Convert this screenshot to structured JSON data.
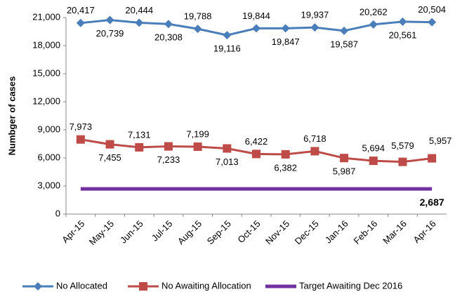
{
  "chart_data": {
    "type": "line",
    "y_label": "Numbger of cases",
    "categories": [
      "Apr-15",
      "May-15",
      "Jun-15",
      "Jul-15",
      "Aug-15",
      "Sep-15",
      "Oct-15",
      "Nov-15",
      "Dec-15",
      "Jan-16",
      "Feb-16",
      "Mar-16",
      "Apr-16"
    ],
    "series": [
      {
        "name": "No Allocated",
        "color": "#4a7ebb",
        "marker": "diamond",
        "values": [
          20417,
          20739,
          20444,
          20308,
          19788,
          19116,
          19844,
          19847,
          19937,
          19587,
          20262,
          20561,
          20504
        ],
        "value_labels": [
          "20,417",
          "20,739",
          "20,444",
          "20,308",
          "19,788",
          "19,116",
          "19,844",
          "19,847",
          "19,937",
          "19,587",
          "20,262",
          "20,561",
          "20,504"
        ]
      },
      {
        "name": "No Awaiting Allocation",
        "color": "#be4b48",
        "marker": "square",
        "values": [
          7973,
          7455,
          7131,
          7233,
          7199,
          7013,
          6422,
          6382,
          6718,
          5987,
          5694,
          5579,
          5957
        ],
        "value_labels": [
          "7,973",
          "7,455",
          "7,131",
          "7,233",
          "7,199",
          "7,013",
          "6,422",
          "6,382",
          "6,718",
          "5,987",
          "5,694",
          "5,579",
          "5,957"
        ]
      },
      {
        "name": "Target Awaiting Dec 2016",
        "color": "#7030a0",
        "marker": "none",
        "values": [
          2687,
          2687,
          2687,
          2687,
          2687,
          2687,
          2687,
          2687,
          2687,
          2687,
          2687,
          2687,
          2687
        ],
        "value_labels": [
          null,
          null,
          null,
          null,
          null,
          null,
          null,
          null,
          null,
          null,
          null,
          null,
          "2,687"
        ]
      }
    ],
    "ylim": [
      0,
      21000
    ],
    "yticks": [
      0,
      {
        "value": 3000,
        "label": "3,000"
      },
      {
        "value": 6000,
        "label": "6,000"
      },
      {
        "value": 9000,
        "label": "9,000"
      },
      {
        "value": 12000,
        "label": "12,000"
      },
      {
        "value": 15000,
        "label": "15,000"
      },
      {
        "value": 18000,
        "label": "18,000"
      },
      {
        "value": 21000,
        "label": "21,000"
      }
    ],
    "grid": false,
    "legend": "bottom"
  }
}
